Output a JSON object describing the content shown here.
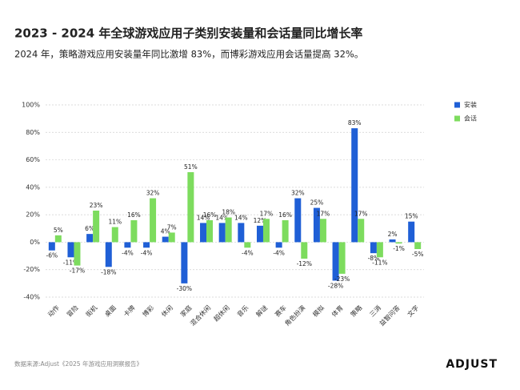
{
  "chart_data": {
    "type": "bar",
    "title": "2023 - 2024 年全球游戏应用子类别安装量和会话量同比增长率",
    "subtitle": "2024 年，策略游戏应用安装量年同比激增 83%，而博彩游戏应用会话量提高 32%。",
    "categories": [
      "动作",
      "冒险",
      "街机",
      "桌面",
      "卡牌",
      "博彩",
      "休闲",
      "家庭",
      "混合休闲",
      "超休闲",
      "音乐",
      "解谜",
      "赛车",
      "角色扮演",
      "模拟",
      "体育",
      "策略",
      "三消",
      "益智问答",
      "文字"
    ],
    "series": [
      {
        "name": "安装",
        "color": "#1f5fd6",
        "values": [
          -6,
          -11,
          6,
          -18,
          -4,
          -4,
          4,
          -30,
          14,
          14,
          14,
          12,
          -4,
          32,
          25,
          -28,
          83,
          -8,
          2,
          15
        ],
        "value_labels": [
          "-6%",
          "-11%",
          "6%",
          "-18%",
          "-4%",
          "-4%",
          "4%",
          "-30%",
          "14%",
          "14%",
          "14%",
          "12%",
          "-4%",
          "32%",
          "25%",
          "-28%",
          "83%",
          "-8%",
          "2%",
          "15%"
        ]
      },
      {
        "name": "会话",
        "color": "#7ddc5e",
        "values": [
          5,
          -17,
          23,
          11,
          16,
          32,
          7,
          51,
          16,
          18,
          -4,
          17,
          16,
          -12,
          17,
          -23,
          17,
          -11,
          -1,
          -5
        ],
        "value_labels": [
          "5%",
          "-17%",
          "23%",
          "11%",
          "16%",
          "32%",
          "7%",
          "51%",
          "16%",
          "18%",
          "-4%",
          "17%",
          "16%",
          "-12%",
          "17%",
          "-23%",
          "17%",
          "-11%",
          "-1%",
          "-5%"
        ]
      }
    ],
    "ylim": [
      -40,
      100
    ],
    "yticks": [
      {
        "value": -40,
        "label": "-40%"
      },
      {
        "value": -20,
        "label": "-20%"
      },
      {
        "value": 0,
        "label": "0%"
      },
      {
        "value": 20,
        "label": "20%"
      },
      {
        "value": 40,
        "label": "40%"
      },
      {
        "value": 60,
        "label": "60%"
      },
      {
        "value": 80,
        "label": "80%"
      },
      {
        "value": 100,
        "label": "100%"
      }
    ],
    "grid": true,
    "legend": "right",
    "source": "数据来源:Adjust《2025 年游戏应用洞察报告》",
    "brand": "ADJUST"
  }
}
